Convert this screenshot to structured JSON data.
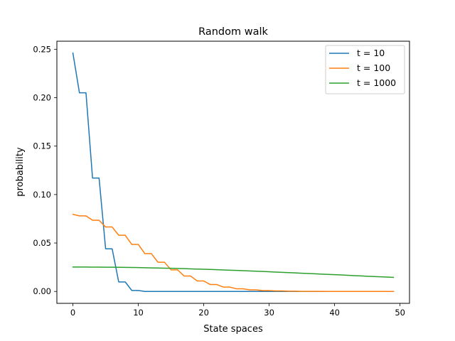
{
  "chart_data": {
    "type": "line",
    "title": "Random walk",
    "xlabel": "State spaces",
    "ylabel": "probability",
    "xlim": [
      -2.45,
      51.45
    ],
    "ylim": [
      -0.0123,
      0.2583
    ],
    "xticks": [
      0,
      10,
      20,
      30,
      40,
      50
    ],
    "yticks": [
      0.0,
      0.05,
      0.1,
      0.15,
      0.2,
      0.25
    ],
    "ytick_labels": [
      "0.00",
      "0.05",
      "0.10",
      "0.15",
      "0.20",
      "0.25"
    ],
    "grid": false,
    "legend_position": "top-right",
    "x": [
      0,
      1,
      2,
      3,
      4,
      5,
      6,
      7,
      8,
      9,
      10,
      11,
      12,
      13,
      14,
      15,
      16,
      17,
      18,
      19,
      20,
      21,
      22,
      23,
      24,
      25,
      26,
      27,
      28,
      29,
      30,
      31,
      32,
      33,
      34,
      35,
      36,
      37,
      38,
      39,
      40,
      41,
      42,
      43,
      44,
      45,
      46,
      47,
      48,
      49
    ],
    "series": [
      {
        "name": "t = 10",
        "color": "#1f77b4",
        "values": [
          0.246,
          0.205,
          0.205,
          0.117,
          0.117,
          0.044,
          0.044,
          0.0098,
          0.0098,
          0.001,
          0.001,
          0,
          0,
          0,
          0,
          0,
          0,
          0,
          0,
          0,
          0,
          0,
          0,
          0,
          0,
          0,
          0,
          0,
          0,
          0,
          0,
          0,
          0,
          0,
          0,
          0,
          0,
          0,
          0,
          0,
          0,
          0,
          0,
          0,
          0,
          0,
          0,
          0,
          0,
          0
        ]
      },
      {
        "name": "t = 100",
        "color": "#ff7f0e",
        "values": [
          0.0796,
          0.078,
          0.078,
          0.0735,
          0.0735,
          0.0665,
          0.0665,
          0.058,
          0.058,
          0.0485,
          0.0485,
          0.039,
          0.039,
          0.0301,
          0.0301,
          0.0223,
          0.0223,
          0.0159,
          0.0159,
          0.0108,
          0.0108,
          0.0071,
          0.0071,
          0.0045,
          0.0045,
          0.0027,
          0.0027,
          0.0016,
          0.0016,
          0.0009,
          0.0009,
          0.0005,
          0.0005,
          0.0003,
          0.0003,
          0.0001,
          0.0001,
          0.0001,
          0.0001,
          0,
          0,
          0,
          0,
          0,
          0,
          0,
          0,
          0,
          0,
          0
        ]
      },
      {
        "name": "t = 1000",
        "color": "#2ca02c",
        "values": [
          0.0252,
          0.0252,
          0.0252,
          0.0251,
          0.0251,
          0.025,
          0.025,
          0.0249,
          0.0248,
          0.0247,
          0.0246,
          0.0245,
          0.0243,
          0.0242,
          0.024,
          0.0239,
          0.0237,
          0.0235,
          0.0233,
          0.0231,
          0.0229,
          0.0227,
          0.0224,
          0.0222,
          0.0219,
          0.0217,
          0.0214,
          0.0212,
          0.0209,
          0.0206,
          0.0203,
          0.02,
          0.0197,
          0.0194,
          0.0191,
          0.0188,
          0.0185,
          0.0182,
          0.0179,
          0.0176,
          0.0173,
          0.017,
          0.0167,
          0.0163,
          0.016,
          0.0157,
          0.0154,
          0.0151,
          0.0148,
          0.0145
        ]
      }
    ]
  }
}
